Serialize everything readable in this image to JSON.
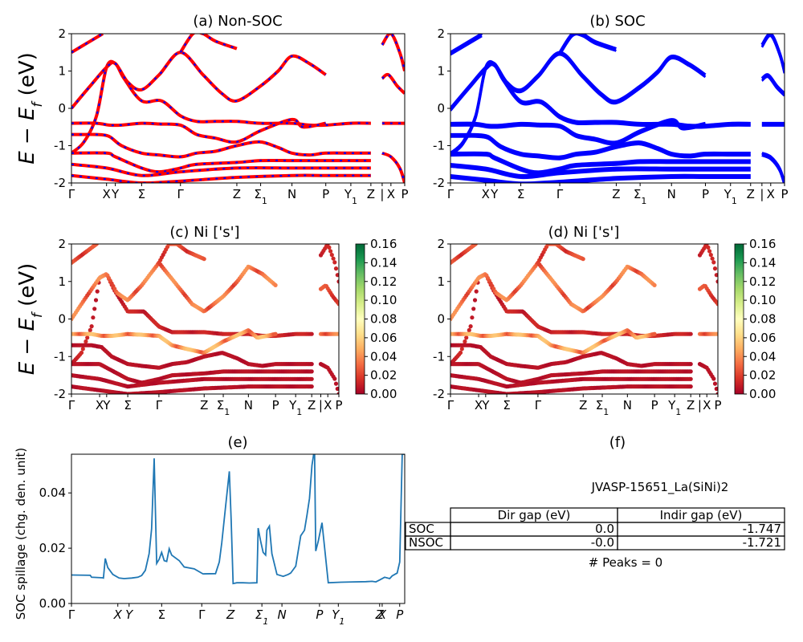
{
  "panels": {
    "a": {
      "title": "(a) Non-SOC"
    },
    "b": {
      "title": "(b) SOC"
    },
    "c": {
      "title": "(c)  Ni ['s']"
    },
    "d": {
      "title": "(d) Ni ['s']"
    },
    "e": {
      "title": "(e)"
    },
    "f": {
      "title": "(f)"
    }
  },
  "colors": {
    "nonsoc_line": "#ff0000",
    "nonsoc_dash": "#0000ff",
    "soc_line": "#0000ff",
    "spillage_line": "#1f77b4",
    "colormap": [
      "#a50026",
      "#d73027",
      "#f46d43",
      "#fdae61",
      "#fee08b",
      "#ffffbf",
      "#d9ef8b",
      "#a6d96a",
      "#66bd63",
      "#1a9850",
      "#006837"
    ]
  },
  "table": {
    "title": "JVASP-15651_La(SiNi)2",
    "columns": [
      "Dir gap (eV)",
      "Indir gap (eV)"
    ],
    "rows": [
      {
        "label": "SOC",
        "dir": "0.0",
        "indir": "-1.747"
      },
      {
        "label": "NSOC",
        "dir": "-0.0",
        "indir": "-1.721"
      }
    ],
    "peaks": "# Peaks = 0"
  },
  "chart_data": [
    {
      "type": "line",
      "panel": "a",
      "title": "(a) Non-SOC",
      "ylabel": "E − E_f (eV)",
      "ylim": [
        -2,
        2
      ],
      "yticks": [
        -2,
        -1,
        0,
        1,
        2
      ],
      "xlim": [
        0,
        26.6
      ],
      "kpoint_labels": [
        [
          "Γ",
          0
        ],
        [
          "X",
          2.8
        ],
        [
          "Y",
          3.5
        ],
        [
          "Σ",
          5.6
        ],
        [
          "Γ",
          8.7
        ],
        [
          "Z",
          13.2
        ],
        [
          "Σ1",
          15.1
        ],
        [
          "N",
          17.6
        ],
        [
          "P",
          20.3
        ],
        [
          "Y1",
          22.3
        ],
        [
          "Z",
          23.9
        ],
        [
          "|",
          24.8
        ],
        [
          "X",
          25.5
        ],
        [
          "P",
          26.6
        ]
      ],
      "style": "red line with blue dashes (both spin channels overlaid)",
      "series": [
        {
          "x": [
            0,
            1,
            2,
            2.8,
            3.5,
            4.2,
            5.6,
            7.2,
            8.7,
            10,
            11.5,
            13.2,
            15.1,
            17.6,
            19,
            20.3,
            22.3,
            23.9
          ],
          "y": [
            -1.2,
            -0.9,
            -0.2,
            1.1,
            1.2,
            0.8,
            0.2,
            0.2,
            -0.2,
            -0.35,
            -0.35,
            -0.35,
            -0.4,
            -0.4,
            -0.45,
            -0.45,
            -0.4,
            -0.4
          ]
        },
        {
          "x": [
            0,
            1.5,
            2.8,
            3.5,
            4.5,
            5.6,
            7,
            8.7,
            10.5,
            12,
            13.2,
            15.1,
            16.5,
            17.6,
            19,
            20.3
          ],
          "y": [
            0.0,
            0.6,
            1.1,
            1.2,
            0.7,
            0.5,
            0.9,
            1.5,
            0.9,
            0.4,
            0.2,
            0.6,
            1.0,
            1.4,
            1.2,
            0.9
          ]
        },
        {
          "x": [
            0,
            2,
            3,
            4,
            5.6,
            7,
            8.7,
            10,
            11.5,
            13.2,
            15.1,
            17.6,
            18.5,
            20.3
          ],
          "y": [
            -0.4,
            -0.4,
            -0.45,
            -0.45,
            -0.4,
            -0.42,
            -0.45,
            -0.7,
            -0.8,
            -0.9,
            -0.6,
            -0.3,
            -0.5,
            -0.4
          ]
        },
        {
          "x": [
            0,
            1,
            2,
            3,
            4,
            5.6,
            7,
            8.7,
            10,
            11.5,
            13.2,
            15,
            16.5,
            17.6,
            19,
            20.3,
            22.3,
            23.9
          ],
          "y": [
            -0.7,
            -0.7,
            -0.7,
            -0.75,
            -1.0,
            -1.2,
            -1.25,
            -1.3,
            -1.2,
            -1.15,
            -1.0,
            -0.9,
            -1.05,
            -1.2,
            -1.25,
            -1.2,
            -1.2,
            -1.2
          ]
        },
        {
          "x": [
            0,
            2.8,
            3.5,
            5.6,
            7,
            8.7,
            10,
            13.2,
            15.1,
            17.6,
            20.3,
            22.3,
            23.9
          ],
          "y": [
            -1.2,
            -1.2,
            -1.3,
            -1.6,
            -1.7,
            -1.6,
            -1.5,
            -1.45,
            -1.4,
            -1.4,
            -1.4,
            -1.4,
            -1.4
          ]
        },
        {
          "x": [
            0,
            2.8,
            5.6,
            8.7,
            13.2,
            17.6,
            20.3,
            23.9
          ],
          "y": [
            -1.5,
            -1.6,
            -1.8,
            -1.7,
            -1.6,
            -1.6,
            -1.6,
            -1.6
          ]
        },
        {
          "x": [
            0,
            2.8,
            5.6,
            8.7,
            13.2,
            17.6,
            20.3,
            23.9
          ],
          "y": [
            -1.8,
            -1.9,
            -2.0,
            -1.95,
            -1.85,
            -1.8,
            -1.8,
            -1.8
          ]
        },
        {
          "x": [
            8.7,
            9.7,
            10.5,
            11.5,
            13.2
          ],
          "y": [
            1.5,
            2.0,
            2.0,
            1.8,
            1.6
          ]
        },
        {
          "x": [
            0,
            1.5,
            2.5
          ],
          "y": [
            1.5,
            1.8,
            2.0
          ]
        },
        {
          "x": [
            24.8,
            25.5,
            26.2,
            26.6
          ],
          "y": [
            1.7,
            2.0,
            1.5,
            1.0
          ]
        },
        {
          "x": [
            24.8,
            25.3,
            26,
            26.6
          ],
          "y": [
            0.8,
            0.9,
            0.6,
            0.4
          ]
        },
        {
          "x": [
            24.8,
            25.5,
            26.6
          ],
          "y": [
            -0.4,
            -0.4,
            -0.4
          ]
        },
        {
          "x": [
            24.8,
            25.5,
            26.2,
            26.6
          ],
          "y": [
            -1.2,
            -1.3,
            -1.6,
            -2.0
          ]
        }
      ]
    },
    {
      "type": "line",
      "panel": "b",
      "title": "(b) SOC",
      "ylim": [
        -2,
        2
      ],
      "yticks": [
        -2,
        -1,
        0,
        1,
        2
      ],
      "xlim": [
        0,
        26.6
      ],
      "kpoint_labels": [
        [
          "Γ",
          0
        ],
        [
          "X",
          2.8
        ],
        [
          "Y",
          3.5
        ],
        [
          "Σ",
          5.6
        ],
        [
          "Γ",
          8.7
        ],
        [
          "Z",
          13.2
        ],
        [
          "Σ1",
          15.1
        ],
        [
          "N",
          17.6
        ],
        [
          "P",
          20.3
        ],
        [
          "Y1",
          22.3
        ],
        [
          "Z",
          23.9
        ],
        [
          "|",
          24.8
        ],
        [
          "X",
          25.5
        ],
        [
          "P",
          26.6
        ]
      ],
      "style": "blue lines",
      "series": [
        {
          "x": [
            0,
            1,
            2,
            2.8,
            3.5,
            4.2,
            5.6,
            7.2,
            8.7,
            10,
            11.5,
            13.2,
            15.1,
            17.6,
            19,
            20.3,
            22.3,
            23.9
          ],
          "y": [
            -1.2,
            -0.9,
            -0.2,
            1.1,
            1.2,
            0.8,
            0.2,
            0.2,
            -0.2,
            -0.35,
            -0.35,
            -0.35,
            -0.4,
            -0.4,
            -0.45,
            -0.45,
            -0.4,
            -0.4
          ]
        },
        {
          "x": [
            0,
            1.5,
            2.8,
            3.5,
            4.5,
            5.6,
            7,
            8.7,
            10.5,
            12,
            13.2,
            15.1,
            16.5,
            17.6,
            19,
            20.3
          ],
          "y": [
            0.0,
            0.6,
            1.1,
            1.2,
            0.7,
            0.5,
            0.9,
            1.5,
            0.9,
            0.4,
            0.2,
            0.6,
            1.0,
            1.4,
            1.2,
            0.9
          ]
        },
        {
          "x": [
            0,
            2,
            3,
            4,
            5.6,
            7,
            8.7,
            10,
            11.5,
            13.2,
            15.1,
            17.6,
            18.5,
            20.3
          ],
          "y": [
            -0.4,
            -0.4,
            -0.45,
            -0.45,
            -0.4,
            -0.42,
            -0.45,
            -0.7,
            -0.8,
            -0.9,
            -0.6,
            -0.3,
            -0.5,
            -0.4
          ]
        },
        {
          "x": [
            0,
            1,
            2,
            3,
            4,
            5.6,
            7,
            8.7,
            10,
            11.5,
            13.2,
            15,
            16.5,
            17.6,
            19,
            20.3,
            22.3,
            23.9
          ],
          "y": [
            -0.7,
            -0.7,
            -0.7,
            -0.75,
            -1.0,
            -1.2,
            -1.25,
            -1.3,
            -1.2,
            -1.15,
            -1.0,
            -0.9,
            -1.05,
            -1.2,
            -1.25,
            -1.2,
            -1.2,
            -1.2
          ]
        },
        {
          "x": [
            0,
            2.8,
            3.5,
            5.6,
            7,
            8.7,
            10,
            13.2,
            15.1,
            17.6,
            20.3,
            22.3,
            23.9
          ],
          "y": [
            -1.2,
            -1.2,
            -1.3,
            -1.6,
            -1.7,
            -1.6,
            -1.5,
            -1.45,
            -1.4,
            -1.4,
            -1.4,
            -1.4,
            -1.4
          ]
        },
        {
          "x": [
            0,
            2.8,
            5.6,
            8.7,
            13.2,
            17.6,
            20.3,
            23.9
          ],
          "y": [
            -1.5,
            -1.6,
            -1.8,
            -1.7,
            -1.6,
            -1.6,
            -1.6,
            -1.6
          ]
        },
        {
          "x": [
            0,
            2.8,
            5.6,
            8.7,
            13.2,
            17.6,
            20.3,
            23.9
          ],
          "y": [
            -1.8,
            -1.9,
            -2.0,
            -1.95,
            -1.85,
            -1.8,
            -1.8,
            -1.8
          ]
        },
        {
          "x": [
            8.7,
            9.7,
            10.5,
            11.5,
            13.2
          ],
          "y": [
            1.5,
            2.0,
            2.0,
            1.8,
            1.6
          ]
        },
        {
          "x": [
            0,
            1.5,
            2.5
          ],
          "y": [
            1.5,
            1.8,
            2.0
          ]
        },
        {
          "x": [
            24.8,
            25.5,
            26.2,
            26.6
          ],
          "y": [
            1.7,
            2.0,
            1.5,
            1.0
          ]
        },
        {
          "x": [
            24.8,
            25.3,
            26,
            26.6
          ],
          "y": [
            0.8,
            0.9,
            0.6,
            0.4
          ]
        },
        {
          "x": [
            24.8,
            25.5,
            26.6
          ],
          "y": [
            -0.4,
            -0.4,
            -0.4
          ]
        },
        {
          "x": [
            24.8,
            25.5,
            26.2,
            26.6
          ],
          "y": [
            -1.2,
            -1.3,
            -1.6,
            -2.0
          ]
        }
      ]
    },
    {
      "type": "scatter",
      "panel": "c",
      "title": "(c)  Ni ['s']",
      "ylabel": "E − E_f (eV)",
      "ylim": [
        -2,
        2
      ],
      "yticks": [
        -2,
        -1,
        0,
        1,
        2
      ],
      "xlim": [
        0,
        26.6
      ],
      "kpoint_labels": [
        [
          "Γ",
          0
        ],
        [
          "X",
          2.8
        ],
        [
          "Y",
          3.5
        ],
        [
          "Σ",
          5.6
        ],
        [
          "Γ",
          8.7
        ],
        [
          "Z",
          13.2
        ],
        [
          "Σ1",
          15.1
        ],
        [
          "N",
          17.6
        ],
        [
          "P",
          20.3
        ],
        [
          "Y1",
          22.3
        ],
        [
          "Z",
          23.9
        ],
        [
          "|",
          24.8
        ],
        [
          "X",
          25.5
        ],
        [
          "P",
          26.6
        ]
      ],
      "colorbar": {
        "ticks": [
          "0.00",
          "0.02",
          "0.04",
          "0.06",
          "0.08",
          "0.10",
          "0.12",
          "0.14",
          "0.16"
        ],
        "min": 0,
        "max": 0.16
      },
      "weights_note": "s-orbital projection weight per band",
      "band_weights": [
        0.01,
        0.03,
        0.04,
        0.005,
        0.005,
        0.005,
        0.005,
        0.02,
        0.02,
        0.01,
        0.02,
        0.03,
        0.005
      ]
    },
    {
      "type": "scatter",
      "panel": "d",
      "title": "(d) Ni ['s']",
      "ylim": [
        -2,
        2
      ],
      "yticks": [
        -2,
        -1,
        0,
        1,
        2
      ],
      "xlim": [
        0,
        26.6
      ],
      "kpoint_labels": [
        [
          "Γ",
          0
        ],
        [
          "X",
          2.8
        ],
        [
          "Y",
          3.5
        ],
        [
          "Σ",
          5.6
        ],
        [
          "Γ",
          8.7
        ],
        [
          "Z",
          13.2
        ],
        [
          "Σ1",
          15.1
        ],
        [
          "N",
          17.6
        ],
        [
          "P",
          20.3
        ],
        [
          "Y1",
          22.3
        ],
        [
          "Z",
          23.9
        ],
        [
          "|",
          24.8
        ],
        [
          "X",
          25.5
        ],
        [
          "P",
          26.6
        ]
      ],
      "colorbar": {
        "ticks": [
          "0.00",
          "0.02",
          "0.04",
          "0.06",
          "0.08",
          "0.10",
          "0.12",
          "0.14",
          "0.16"
        ],
        "min": 0,
        "max": 0.16
      },
      "band_weights": [
        0.01,
        0.03,
        0.04,
        0.005,
        0.005,
        0.005,
        0.005,
        0.02,
        0.02,
        0.01,
        0.02,
        0.03,
        0.005
      ]
    },
    {
      "type": "line",
      "panel": "e",
      "title": "(e)",
      "ylabel": "SOC spillage (chg. den. unit)",
      "ylim": [
        0,
        0.054
      ],
      "yticks": [
        0.0,
        0.02,
        0.04
      ],
      "ytick_labels": [
        "0.00",
        "0.02",
        "0.04"
      ],
      "xlim": [
        0,
        26.6
      ],
      "kpoint_labels": [
        [
          "Γ",
          0
        ],
        [
          "X",
          3.7
        ],
        [
          "Y",
          4.6
        ],
        [
          "Σ",
          7.2
        ],
        [
          "Γ",
          10.4
        ],
        [
          "Z",
          12.7
        ],
        [
          "Σ1",
          15.2
        ],
        [
          "N",
          16.8
        ],
        [
          "P",
          19.8
        ],
        [
          "Y1",
          21.3
        ],
        [
          "Z",
          24.6
        ],
        [
          "X",
          24.8
        ],
        [
          "P",
          26.2
        ]
      ],
      "x": [
        0,
        1.5,
        1.6,
        2.5,
        2.55,
        2.7,
        2.9,
        3.3,
        3.8,
        4.2,
        4.8,
        5.3,
        5.6,
        5.9,
        6.2,
        6.4,
        6.6,
        6.8,
        7.0,
        7.2,
        7.4,
        7.6,
        7.8,
        8.0,
        8.3,
        8.6,
        9.0,
        9.8,
        10.5,
        11.5,
        11.8,
        12.0,
        12.3,
        12.6,
        12.75,
        12.9,
        13.2,
        13.7,
        14.2,
        14.8,
        14.9,
        15.1,
        15.3,
        15.5,
        15.6,
        15.8,
        16.0,
        16.4,
        16.9,
        17.3,
        17.5,
        17.9,
        18.3,
        18.6,
        18.8,
        19.0,
        19.2,
        19.4,
        19.5,
        19.7,
        20.0,
        20.5,
        21.5,
        22.5,
        23.5,
        24.0,
        24.3,
        24.6,
        25.0,
        25.4,
        25.6,
        25.8,
        26.0,
        26.2,
        26.4,
        26.6
      ],
      "y": [
        0.0103,
        0.0102,
        0.0095,
        0.0093,
        0.0092,
        0.0163,
        0.013,
        0.0105,
        0.0092,
        0.009,
        0.0092,
        0.0095,
        0.0101,
        0.012,
        0.018,
        0.027,
        0.0525,
        0.0145,
        0.016,
        0.0185,
        0.0155,
        0.0152,
        0.0198,
        0.0175,
        0.0165,
        0.0155,
        0.0132,
        0.0125,
        0.0107,
        0.0108,
        0.015,
        0.022,
        0.035,
        0.0478,
        0.03,
        0.0072,
        0.0075,
        0.0075,
        0.0074,
        0.0075,
        0.0273,
        0.0225,
        0.0185,
        0.0175,
        0.0265,
        0.028,
        0.018,
        0.0105,
        0.0098,
        0.0105,
        0.011,
        0.0135,
        0.0245,
        0.0265,
        0.032,
        0.038,
        0.05,
        0.056,
        0.019,
        0.0225,
        0.0292,
        0.0075,
        0.0077,
        0.0078,
        0.0079,
        0.008,
        0.0078,
        0.0085,
        0.0095,
        0.009,
        0.01,
        0.0105,
        0.011,
        0.015,
        0.054,
        0.054
      ]
    }
  ]
}
